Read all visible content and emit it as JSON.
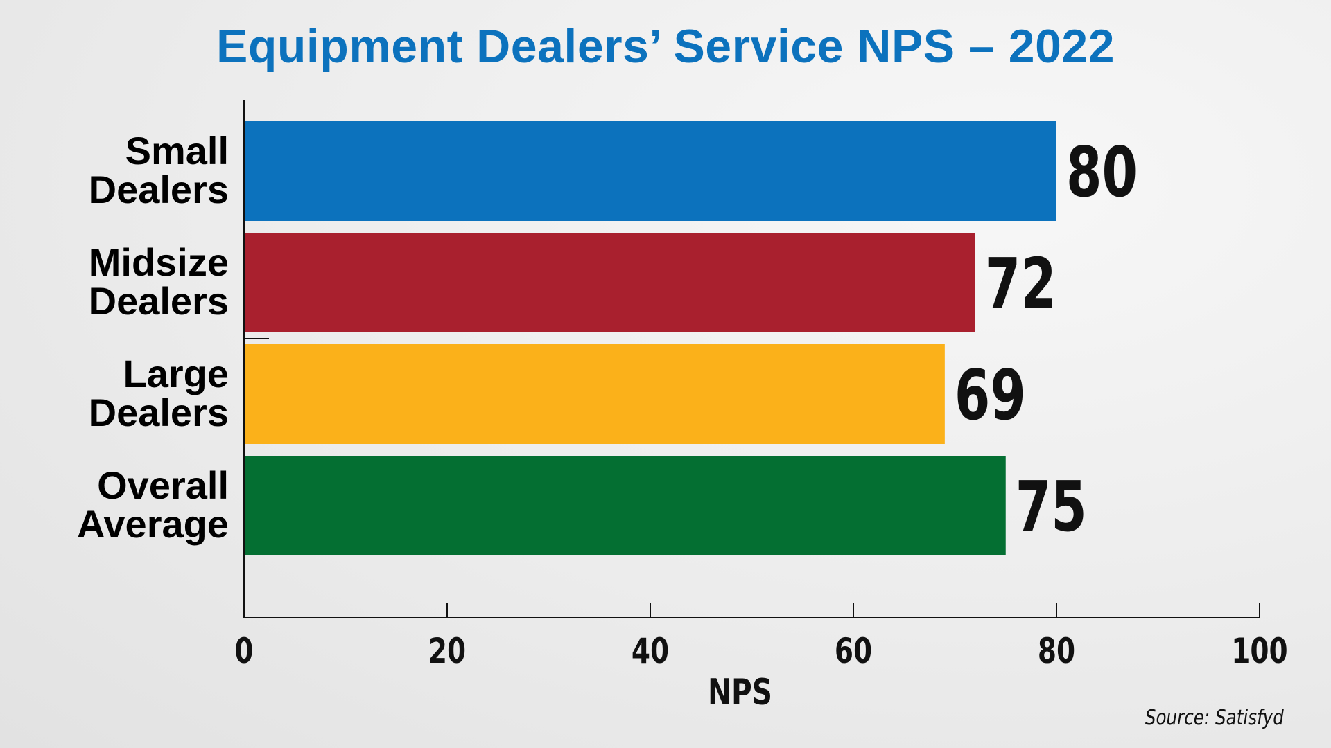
{
  "chart_data": {
    "type": "bar",
    "orientation": "horizontal",
    "title": "Equipment Dealers’ Service NPS – 2022",
    "categories": [
      [
        "Small",
        "Dealers"
      ],
      [
        "Midsize",
        "Dealers"
      ],
      [
        "Large",
        "Dealers"
      ],
      [
        "Overall",
        "Average"
      ]
    ],
    "values": [
      80,
      72,
      69,
      75
    ],
    "bar_colors": [
      "#0c72bd",
      "#a9202e",
      "#fbb11a",
      "#046f32"
    ],
    "xlabel": "NPS",
    "ylabel": "",
    "xlim": [
      0,
      100
    ],
    "xticks": [
      0,
      20,
      40,
      60,
      80,
      100
    ],
    "grid": false,
    "legend": "none",
    "data_labels": true
  },
  "title_color": "#0c72bd",
  "source": "Source: Satisfyd"
}
